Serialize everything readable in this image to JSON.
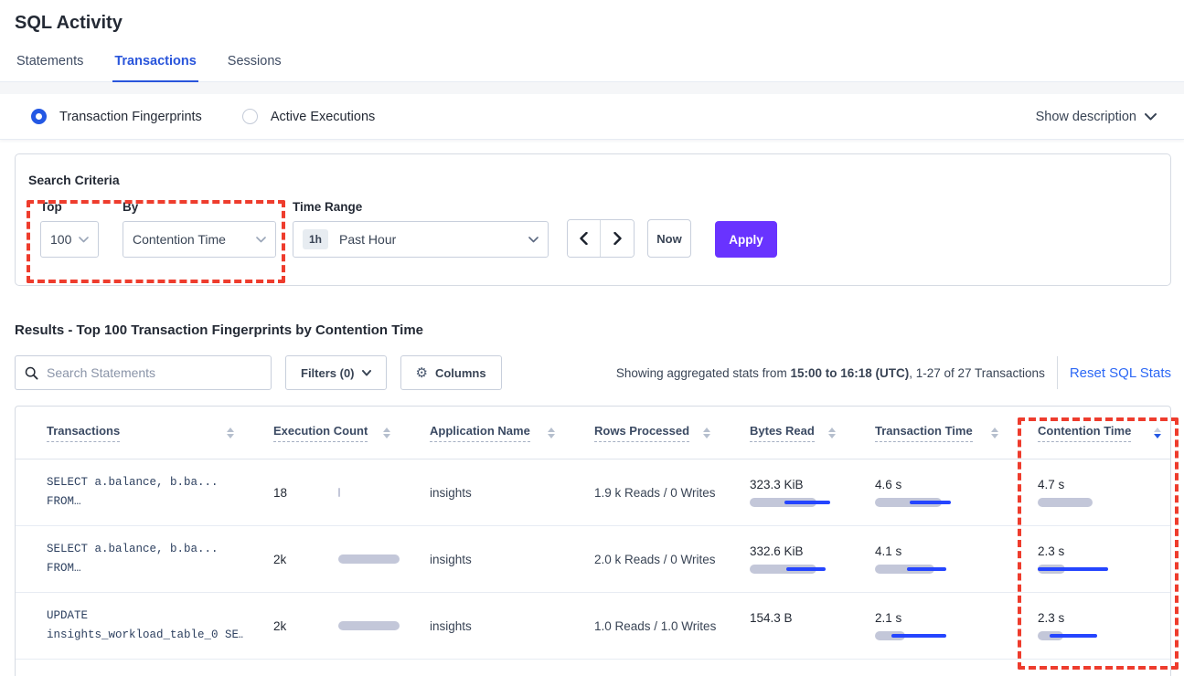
{
  "page": {
    "title": "SQL Activity"
  },
  "tabs": [
    {
      "label": "Statements",
      "active": false
    },
    {
      "label": "Transactions",
      "active": true
    },
    {
      "label": "Sessions",
      "active": false
    }
  ],
  "view_toggle": {
    "options": [
      {
        "label": "Transaction Fingerprints",
        "selected": true
      },
      {
        "label": "Active Executions",
        "selected": false
      }
    ],
    "show_description_label": "Show description"
  },
  "search_criteria": {
    "title": "Search Criteria",
    "top": {
      "label": "Top",
      "value": "100"
    },
    "by": {
      "label": "By",
      "value": "Contention Time"
    },
    "time_range": {
      "label": "Time Range",
      "badge": "1h",
      "value": "Past Hour"
    },
    "now_label": "Now",
    "apply_label": "Apply"
  },
  "results": {
    "heading": "Results - Top 100 Transaction Fingerprints by Contention Time",
    "search_placeholder": "Search Statements",
    "filters_label": "Filters (0)",
    "columns_label": "Columns",
    "stats_prefix": "Showing aggregated stats from ",
    "stats_bold": "15:00 to 16:18 (UTC)",
    "stats_suffix": ", 1-27 of 27 Transactions",
    "reset_label": "Reset SQL Stats"
  },
  "table": {
    "columns": [
      "Transactions",
      "Execution Count",
      "Application Name",
      "Rows Processed",
      "Bytes Read",
      "Transaction Time",
      "Contention Time"
    ],
    "sort": {
      "column": "Contention Time",
      "direction": "desc"
    },
    "rows": [
      {
        "query_line1": "SELECT a.balance, b.ba...",
        "query_line2": "FROM…",
        "exec_count": "18",
        "exec_bar_pct": 3,
        "app": "insights",
        "rows_processed": "1.9 k Reads / 0 Writes",
        "bytes_read": {
          "value": "323.3 KiB",
          "bar_pct": 81,
          "line": [
            42,
            98
          ]
        },
        "txn_time": {
          "value": "4.6 s",
          "bar_pct": 81,
          "line": [
            42,
            92
          ]
        },
        "contention": {
          "value": "4.7 s",
          "bar_pct": 67,
          "line": null
        }
      },
      {
        "query_line1": "SELECT a.balance, b.ba...",
        "query_line2": "FROM…",
        "exec_count": "2k",
        "exec_bar_pct": 100,
        "app": "insights",
        "rows_processed": "2.0 k Reads / 0 Writes",
        "bytes_read": {
          "value": "332.6 KiB",
          "bar_pct": 81,
          "line": [
            44,
            92
          ]
        },
        "txn_time": {
          "value": "4.1 s",
          "bar_pct": 72,
          "line": [
            39,
            87
          ]
        },
        "contention": {
          "value": "2.3 s",
          "bar_pct": 33,
          "line": [
            0,
            86
          ]
        }
      },
      {
        "query_line1": "UPDATE",
        "query_line2": "insights_workload_table_0 SE…",
        "exec_count": "2k",
        "exec_bar_pct": 100,
        "app": "insights",
        "rows_processed": "1.0 Reads / 1.0 Writes",
        "bytes_read": {
          "value": "154.3 B",
          "bar_pct": 0,
          "line": null
        },
        "txn_time": {
          "value": "2.1 s",
          "bar_pct": 37,
          "line": [
            20,
            87
          ]
        },
        "contention": {
          "value": "2.3 s",
          "bar_pct": 31,
          "line": [
            14,
            72
          ]
        }
      }
    ]
  },
  "colors": {
    "accent_blue": "#2955db",
    "link_blue": "#2d68f5",
    "apply_purple": "#6933ff",
    "bar_gray": "#c3c7d9",
    "bar_blue": "#2545ff",
    "highlight_red": "#ee3c2d"
  }
}
